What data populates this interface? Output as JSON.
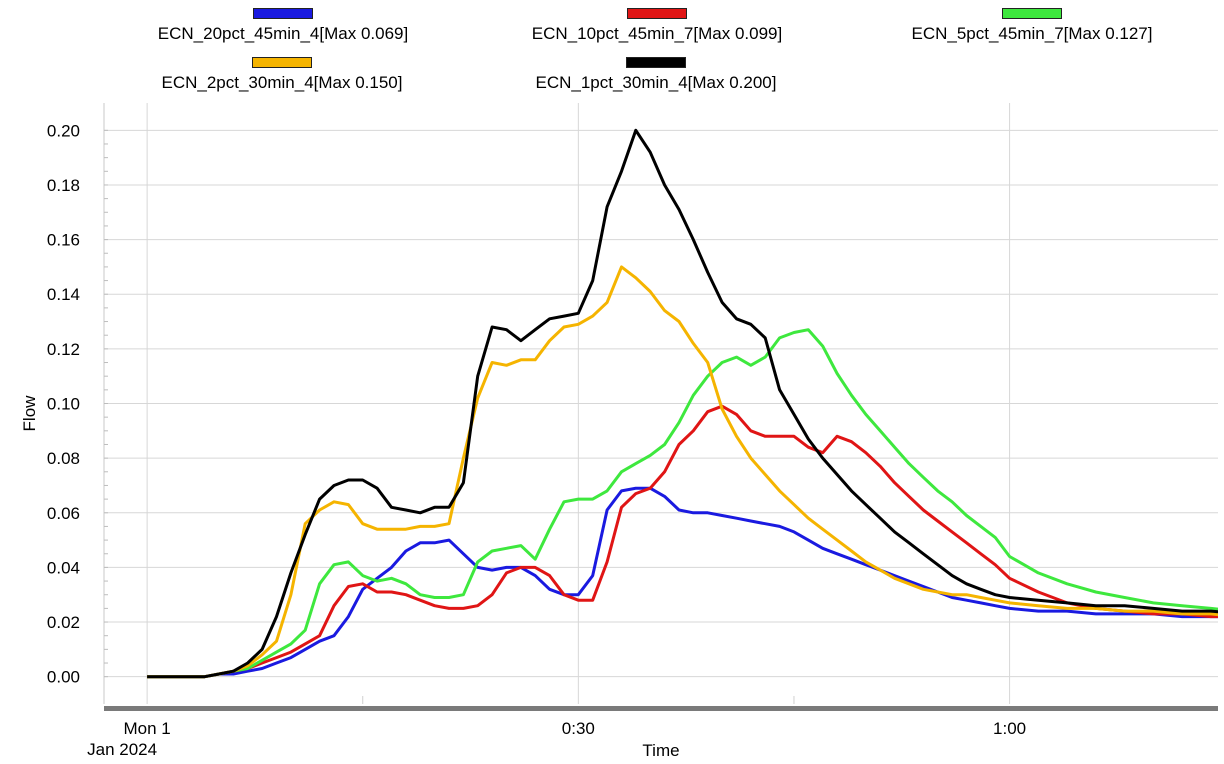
{
  "chart_data": {
    "type": "line",
    "ylabel": "Flow",
    "xlabel": "Time",
    "x_ticks": [
      "Mon 1",
      "0:30",
      "1:00"
    ],
    "x_tick_sublabel": "Jan 2024",
    "x_minutes": [
      0,
      1,
      2,
      3,
      4,
      5,
      6,
      7,
      8,
      9,
      10,
      11,
      12,
      13,
      14,
      15,
      16,
      17,
      18,
      19,
      20,
      21,
      22,
      23,
      24,
      25,
      26,
      27,
      28,
      29,
      30,
      31,
      32,
      33,
      34,
      35,
      36,
      37,
      38,
      39,
      40,
      41,
      42,
      43,
      44,
      45,
      46,
      47,
      48,
      49,
      50,
      51,
      52,
      53,
      54,
      55,
      56,
      57,
      58,
      59,
      60,
      62,
      64,
      66,
      68,
      70,
      72,
      74,
      76
    ],
    "xlim": [
      -3,
      74.5
    ],
    "y_ticks": [
      "0.00",
      "0.02",
      "0.04",
      "0.06",
      "0.08",
      "0.10",
      "0.12",
      "0.14",
      "0.16",
      "0.18",
      "0.20"
    ],
    "ylim": [
      -0.01,
      0.21
    ],
    "grid": true,
    "legend_position": "top",
    "series": [
      {
        "name": "ECN_20pct_45min_4",
        "legend_label": "ECN_20pct_45min_4[Max 0.069]",
        "color": "#1a1ae0",
        "values": [
          0.0,
          0.0,
          0.0,
          0.0,
          0.0,
          0.001,
          0.001,
          0.002,
          0.003,
          0.005,
          0.007,
          0.01,
          0.013,
          0.015,
          0.022,
          0.032,
          0.036,
          0.04,
          0.046,
          0.049,
          0.049,
          0.05,
          0.045,
          0.04,
          0.039,
          0.04,
          0.04,
          0.037,
          0.032,
          0.03,
          0.03,
          0.037,
          0.061,
          0.068,
          0.069,
          0.069,
          0.066,
          0.061,
          0.06,
          0.06,
          0.059,
          0.058,
          0.057,
          0.056,
          0.055,
          0.053,
          0.05,
          0.047,
          0.045,
          0.043,
          0.041,
          0.039,
          0.037,
          0.035,
          0.033,
          0.031,
          0.029,
          0.028,
          0.027,
          0.026,
          0.025,
          0.024,
          0.024,
          0.023,
          0.023,
          0.023,
          0.022,
          0.022,
          0.022
        ]
      },
      {
        "name": "ECN_10pct_45min_7",
        "legend_label": "ECN_10pct_45min_7[Max 0.099]",
        "color": "#e01515",
        "values": [
          0.0,
          0.0,
          0.0,
          0.0,
          0.0,
          0.001,
          0.002,
          0.003,
          0.005,
          0.007,
          0.009,
          0.012,
          0.015,
          0.026,
          0.033,
          0.034,
          0.031,
          0.031,
          0.03,
          0.028,
          0.026,
          0.025,
          0.025,
          0.026,
          0.03,
          0.038,
          0.04,
          0.04,
          0.037,
          0.03,
          0.028,
          0.028,
          0.042,
          0.062,
          0.067,
          0.069,
          0.075,
          0.085,
          0.09,
          0.097,
          0.099,
          0.096,
          0.09,
          0.088,
          0.088,
          0.088,
          0.084,
          0.082,
          0.088,
          0.086,
          0.082,
          0.077,
          0.071,
          0.066,
          0.061,
          0.057,
          0.053,
          0.049,
          0.045,
          0.041,
          0.036,
          0.031,
          0.027,
          0.025,
          0.024,
          0.023,
          0.023,
          0.022,
          0.022
        ]
      },
      {
        "name": "ECN_5pct_45min_7",
        "legend_label": "ECN_5pct_45min_7[Max 0.127]",
        "color": "#3ee83e",
        "values": [
          0.0,
          0.0,
          0.0,
          0.0,
          0.0,
          0.001,
          0.002,
          0.003,
          0.006,
          0.009,
          0.012,
          0.017,
          0.034,
          0.041,
          0.042,
          0.037,
          0.035,
          0.036,
          0.034,
          0.03,
          0.029,
          0.029,
          0.03,
          0.042,
          0.046,
          0.047,
          0.048,
          0.043,
          0.054,
          0.064,
          0.065,
          0.065,
          0.068,
          0.075,
          0.078,
          0.081,
          0.085,
          0.093,
          0.103,
          0.11,
          0.115,
          0.117,
          0.114,
          0.117,
          0.124,
          0.126,
          0.127,
          0.121,
          0.111,
          0.103,
          0.096,
          0.09,
          0.084,
          0.078,
          0.073,
          0.068,
          0.064,
          0.059,
          0.055,
          0.051,
          0.044,
          0.038,
          0.034,
          0.031,
          0.029,
          0.027,
          0.026,
          0.025,
          0.024
        ]
      },
      {
        "name": "ECN_2pct_30min_4",
        "legend_label": "ECN_2pct_30min_4[Max 0.150]",
        "color": "#f5b400",
        "values": [
          0.0,
          0.0,
          0.0,
          0.0,
          0.0,
          0.001,
          0.002,
          0.004,
          0.008,
          0.013,
          0.03,
          0.056,
          0.061,
          0.064,
          0.063,
          0.056,
          0.054,
          0.054,
          0.054,
          0.055,
          0.055,
          0.056,
          0.08,
          0.102,
          0.115,
          0.114,
          0.116,
          0.116,
          0.123,
          0.128,
          0.129,
          0.132,
          0.137,
          0.15,
          0.146,
          0.141,
          0.134,
          0.13,
          0.122,
          0.115,
          0.098,
          0.088,
          0.08,
          0.074,
          0.068,
          0.063,
          0.058,
          0.054,
          0.05,
          0.046,
          0.042,
          0.039,
          0.036,
          0.034,
          0.032,
          0.031,
          0.03,
          0.03,
          0.029,
          0.028,
          0.027,
          0.026,
          0.025,
          0.025,
          0.024,
          0.024,
          0.023,
          0.023,
          0.022
        ]
      },
      {
        "name": "ECN_1pct_30min_4",
        "legend_label": "ECN_1pct_30min_4[Max 0.200]",
        "color": "#000000",
        "values": [
          0.0,
          0.0,
          0.0,
          0.0,
          0.0,
          0.001,
          0.002,
          0.005,
          0.01,
          0.022,
          0.038,
          0.052,
          0.065,
          0.07,
          0.072,
          0.072,
          0.069,
          0.062,
          0.061,
          0.06,
          0.062,
          0.062,
          0.071,
          0.11,
          0.128,
          0.127,
          0.123,
          0.127,
          0.131,
          0.132,
          0.133,
          0.145,
          0.172,
          0.185,
          0.2,
          0.192,
          0.18,
          0.171,
          0.16,
          0.148,
          0.137,
          0.131,
          0.129,
          0.124,
          0.105,
          0.096,
          0.087,
          0.08,
          0.074,
          0.068,
          0.063,
          0.058,
          0.053,
          0.049,
          0.045,
          0.041,
          0.037,
          0.034,
          0.032,
          0.03,
          0.029,
          0.028,
          0.027,
          0.026,
          0.026,
          0.025,
          0.024,
          0.024,
          0.023
        ]
      }
    ]
  }
}
